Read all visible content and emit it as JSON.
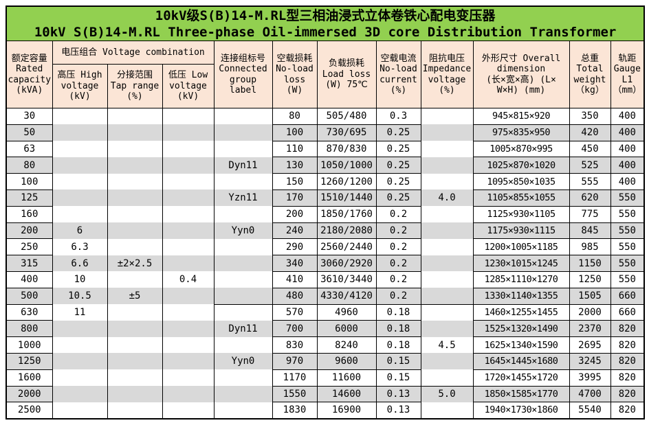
{
  "title": {
    "line1": "10kV级S(B)14-M.RL型三相油浸式立体卷铁心配电变压器",
    "line2": "10kV S(B)14-M.RL Three-phase Oil-immersed 3D core Distribution Transformer"
  },
  "colors": {
    "title_bg": "#92D050",
    "header_bg": "#FBE5D6",
    "stripe_bg": "#D9D9D9",
    "border": "#000000"
  },
  "header": {
    "capacity": "额定容量\nRated\ncapacity\n(kVA)",
    "voltage_combination": "电压组合 Voltage combination",
    "hv": "高压 High\nvoltage\n(kV)",
    "tap": "分接范围\nTap range\n(%)",
    "lv": "低压 Low\nvoltage\n(kV)",
    "group": "连接组标号\nConnected\ngroup\nlabel",
    "noload": "空载损耗\nNo-load\nloss\n(W)",
    "load": "负载损耗\nLoad loss\n(W) 75℃",
    "current": "空载电流\nNo-load\ncurrent\n(%)",
    "impedance": "阻抗电压\nImpedance\nvoltage\n(%)",
    "dimension": "外形尺寸 Overall\ndimension\n(长×宽×高) (L×\nW×H) (mm)",
    "weight": "总重\nTotal\nweight\n（kg）",
    "gauge": "轨距\nGauge\nL1\n（mm）"
  },
  "table": {
    "columns": [
      {
        "key": "capacity"
      },
      {
        "key": "hv",
        "merge": true,
        "breaks": [
          0
        ]
      },
      {
        "key": "tap",
        "merge": true,
        "breaks": [
          0
        ]
      },
      {
        "key": "lv",
        "merge": true,
        "breaks": [
          0
        ]
      },
      {
        "key": "group",
        "merge": true,
        "breaks": [
          0,
          12
        ]
      },
      {
        "key": "noload"
      },
      {
        "key": "load"
      },
      {
        "key": "current"
      },
      {
        "key": "impedance",
        "merge": true,
        "breaks": [
          0,
          12,
          17
        ]
      },
      {
        "key": "dimension"
      },
      {
        "key": "weight"
      },
      {
        "key": "gauge"
      }
    ],
    "rows": [
      {
        "capacity": "30",
        "noload": "80",
        "load": "505/480",
        "current": "0.3",
        "dimension": "945×815×920",
        "weight": "350",
        "gauge": "400"
      },
      {
        "capacity": "50",
        "noload": "100",
        "load": "730/695",
        "current": "0.25",
        "dimension": "975×835×950",
        "weight": "420",
        "gauge": "400"
      },
      {
        "capacity": "63",
        "noload": "110",
        "load": "870/830",
        "current": "0.25",
        "dimension": "1005×870×995",
        "weight": "450",
        "gauge": "400"
      },
      {
        "capacity": "80",
        "group": "Dyn11",
        "noload": "130",
        "load": "1050/1000",
        "current": "0.25",
        "dimension": "1025×870×1020",
        "weight": "525",
        "gauge": "400"
      },
      {
        "capacity": "100",
        "noload": "150",
        "load": "1260/1200",
        "current": "0.25",
        "dimension": "1095×850×1035",
        "weight": "555",
        "gauge": "400"
      },
      {
        "capacity": "125",
        "group": "Yzn11",
        "noload": "170",
        "load": "1510/1440",
        "current": "0.25",
        "impedance": "4.0",
        "dimension": "1105×855×1055",
        "weight": "620",
        "gauge": "550"
      },
      {
        "capacity": "160",
        "noload": "200",
        "load": "1850/1760",
        "current": "0.2",
        "dimension": "1125×930×1105",
        "weight": "775",
        "gauge": "550"
      },
      {
        "capacity": "200",
        "hv": "6",
        "group": "Yyn0",
        "noload": "240",
        "load": "2180/2080",
        "current": "0.2",
        "dimension": "1175×930×1115",
        "weight": "845",
        "gauge": "550"
      },
      {
        "capacity": "250",
        "hv": "6.3",
        "noload": "290",
        "load": "2560/2440",
        "current": "0.2",
        "dimension": "1200×1005×1185",
        "weight": "985",
        "gauge": "550"
      },
      {
        "capacity": "315",
        "hv": "6.6",
        "tap": "±2×2.5",
        "noload": "340",
        "load": "3060/2920",
        "current": "0.2",
        "dimension": "1230×1015×1245",
        "weight": "1150",
        "gauge": "550"
      },
      {
        "capacity": "400",
        "hv": "10",
        "lv": "0.4",
        "noload": "410",
        "load": "3610/3440",
        "current": "0.2",
        "dimension": "1285×1110×1270",
        "weight": "1250",
        "gauge": "550"
      },
      {
        "capacity": "500",
        "hv": "10.5",
        "tap": "±5",
        "noload": "480",
        "load": "4330/4120",
        "current": "0.2",
        "dimension": "1330×1140×1355",
        "weight": "1505",
        "gauge": "660"
      },
      {
        "capacity": "630",
        "hv": "11",
        "noload": "570",
        "load": "4960",
        "current": "0.18",
        "dimension": "1460×1255×1455",
        "weight": "2000",
        "gauge": "660"
      },
      {
        "capacity": "800",
        "group": "Dyn11",
        "noload": "700",
        "load": "6000",
        "current": "0.18",
        "dimension": "1525×1320×1490",
        "weight": "2370",
        "gauge": "820"
      },
      {
        "capacity": "1000",
        "noload": "830",
        "load": "8240",
        "current": "0.18",
        "impedance": "4.5",
        "dimension": "1625×1340×1590",
        "weight": "2695",
        "gauge": "820"
      },
      {
        "capacity": "1250",
        "group": "Yyn0",
        "noload": "970",
        "load": "9600",
        "current": "0.15",
        "dimension": "1645×1445×1680",
        "weight": "3245",
        "gauge": "820"
      },
      {
        "capacity": "1600",
        "noload": "1170",
        "load": "11600",
        "current": "0.15",
        "dimension": "1720×1455×1720",
        "weight": "3995",
        "gauge": "820"
      },
      {
        "capacity": "2000",
        "noload": "1550",
        "load": "14600",
        "current": "0.13",
        "impedance": "5.0",
        "dimension": "1850×1585×1770",
        "weight": "4700",
        "gauge": "820"
      },
      {
        "capacity": "2500",
        "noload": "1830",
        "load": "16900",
        "current": "0.13",
        "dimension": "1940×1730×1860",
        "weight": "5540",
        "gauge": "820"
      }
    ]
  }
}
